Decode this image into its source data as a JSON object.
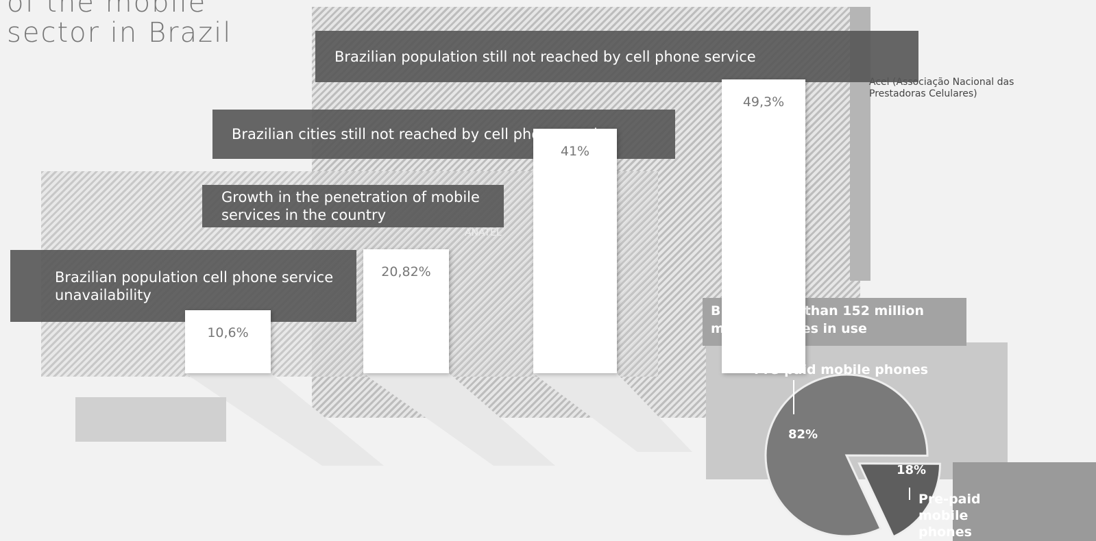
{
  "chart_data": [
    {
      "type": "bar",
      "title": [
        "of the mobile",
        "sector in Brazil"
      ],
      "categories": [
        "Brazilian population cell phone service unavailability",
        "Growth in the penetration of mobile services in the country",
        "Brazilian cities still not reached by cell phone service",
        "Brazilian population still not reached by cell phone service"
      ],
      "values": [
        10.6,
        20.82,
        41,
        49.3
      ],
      "value_labels": [
        "10,6%",
        "20,82%",
        "41%",
        "49,3%"
      ],
      "sources": [
        "ANATEL",
        "Acel (Associação Nacional das Prestadoras Celulares)"
      ],
      "color": "#ffffff"
    },
    {
      "type": "pie",
      "title": "Brazil: more than 152 million mobile phones in use",
      "categories": [
        "Pre-paid mobile phones",
        "Pre-paid mobile phones"
      ],
      "values": [
        82,
        18
      ],
      "value_labels": [
        "82%",
        "18%"
      ],
      "colors": [
        "#7a7a7a",
        "#5e5e5e"
      ]
    }
  ]
}
